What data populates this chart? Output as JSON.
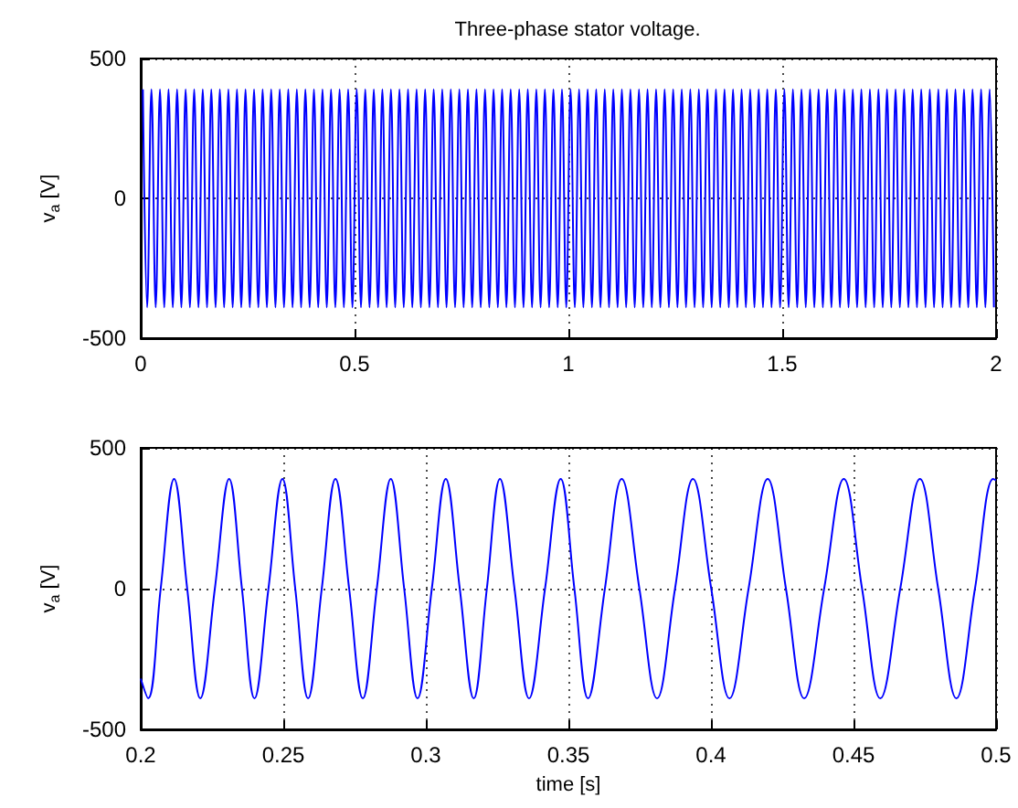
{
  "chart_data": [
    {
      "type": "line",
      "title": "Three-phase stator voltage.",
      "ylabel": "v$_{a}$ [V]",
      "color": "#0000ff",
      "line_style": "solid",
      "grid": true,
      "xlim": [
        0,
        2
      ],
      "xticks": [
        0,
        0.5,
        1,
        1.5,
        2
      ],
      "ylim": [
        -500,
        500
      ],
      "yticks": [
        -500,
        0,
        500
      ],
      "x": [
        0.005,
        0.015,
        0.025,
        0.035,
        0.045,
        0.055,
        0.065,
        0.075,
        0.085,
        0.095,
        0.105,
        0.115,
        0.125,
        0.135,
        0.145,
        0.155,
        0.165,
        0.175,
        0.185,
        0.195,
        0.205,
        0.215,
        0.225,
        0.235,
        0.245,
        0.255,
        0.265,
        0.275,
        0.285,
        0.295,
        0.305,
        0.315,
        0.325,
        0.335,
        0.345,
        0.355,
        0.365,
        0.375,
        0.385,
        0.395,
        0.405,
        0.415,
        0.425,
        0.435,
        0.445,
        0.455,
        0.465,
        0.475,
        0.485,
        0.495,
        0.505,
        0.515,
        0.525,
        0.535,
        0.545,
        0.555,
        0.565,
        0.575,
        0.585,
        0.595,
        0.605,
        0.615,
        0.625,
        0.635,
        0.645,
        0.655,
        0.665,
        0.675,
        0.685,
        0.695,
        0.705,
        0.715,
        0.725,
        0.735,
        0.745,
        0.755,
        0.765,
        0.775,
        0.785,
        0.795,
        0.805,
        0.815,
        0.825,
        0.835,
        0.845,
        0.855,
        0.865,
        0.875,
        0.885,
        0.895,
        0.905,
        0.915,
        0.925,
        0.935,
        0.945,
        0.955,
        0.965,
        0.975,
        0.985,
        0.995,
        1.005,
        1.015,
        1.025,
        1.035,
        1.045,
        1.055,
        1.065,
        1.075,
        1.085,
        1.095,
        1.105,
        1.115,
        1.125,
        1.135,
        1.145,
        1.155,
        1.165,
        1.175,
        1.185,
        1.195,
        1.205,
        1.215,
        1.225,
        1.235,
        1.245,
        1.255,
        1.265,
        1.275,
        1.285,
        1.295,
        1.305,
        1.315,
        1.325,
        1.335,
        1.345,
        1.355,
        1.365,
        1.375,
        1.385,
        1.395,
        1.405,
        1.415,
        1.425,
        1.435,
        1.445,
        1.455,
        1.465,
        1.475,
        1.485,
        1.495,
        1.505,
        1.515,
        1.525,
        1.535,
        1.545,
        1.555,
        1.565,
        1.575,
        1.585,
        1.595,
        1.605,
        1.615,
        1.625,
        1.635,
        1.645,
        1.655,
        1.665,
        1.675,
        1.685,
        1.695,
        1.705,
        1.715,
        1.725,
        1.735,
        1.745,
        1.755,
        1.765,
        1.775,
        1.785,
        1.795,
        1.805,
        1.815,
        1.825,
        1.835,
        1.845,
        1.855,
        1.865,
        1.875,
        1.885,
        1.895,
        1.905,
        1.915,
        1.925,
        1.935,
        1.945,
        1.955,
        1.965,
        1.975,
        1.985,
        1.995
      ],
      "values": [
        390,
        -390,
        390,
        -390,
        390,
        -390,
        390,
        -390,
        390,
        -390,
        390,
        -390,
        390,
        -390,
        390,
        -390,
        390,
        -390,
        390,
        -390,
        390,
        -390,
        390,
        -390,
        390,
        -390,
        390,
        -390,
        390,
        -390,
        390,
        -390,
        390,
        -390,
        390,
        -390,
        390,
        -390,
        390,
        -390,
        390,
        -390,
        390,
        -390,
        390,
        -390,
        390,
        -390,
        390,
        -390,
        390,
        -390,
        390,
        -390,
        390,
        -390,
        390,
        -390,
        390,
        -390,
        390,
        -390,
        390,
        -390,
        390,
        -390,
        390,
        -390,
        390,
        -390,
        390,
        -390,
        390,
        -390,
        390,
        -390,
        390,
        -390,
        390,
        -390,
        390,
        -390,
        390,
        -390,
        390,
        -390,
        390,
        -390,
        390,
        -390,
        390,
        -390,
        390,
        -390,
        390,
        -390,
        390,
        -390,
        390,
        -390,
        390,
        -390,
        390,
        -390,
        390,
        -390,
        390,
        -390,
        390,
        -390,
        390,
        -390,
        390,
        -390,
        390,
        -390,
        390,
        -390,
        390,
        -390,
        390,
        -390,
        390,
        -390,
        390,
        -390,
        390,
        -390,
        390,
        -390,
        390,
        -390,
        390,
        -390,
        390,
        -390,
        390,
        -390,
        390,
        -390,
        390,
        -390,
        390,
        -390,
        390,
        -390,
        390,
        -390,
        390,
        -390,
        390,
        -390,
        390,
        -390,
        390,
        -390,
        390,
        -390,
        390,
        -390,
        390,
        -390,
        390,
        -390,
        390,
        -390,
        390,
        -390,
        390,
        -390,
        390,
        -390,
        390,
        -390,
        390,
        -390,
        390,
        -390,
        390,
        -390,
        390,
        -390,
        390,
        -390,
        390,
        -390,
        390,
        -390,
        390,
        -390,
        390,
        -390,
        390,
        -390,
        390,
        -390,
        390,
        -390,
        390,
        -390
      ]
    },
    {
      "type": "line",
      "xlabel": "time [s]",
      "ylabel": "v$_{a}$ [V]",
      "color": "#0000ff",
      "line_style": "solid",
      "grid": true,
      "xlim": [
        0.2,
        0.5
      ],
      "xticks": [
        0.2,
        0.25,
        0.3,
        0.35,
        0.4,
        0.45,
        0.5
      ],
      "ylim": [
        -500,
        500
      ],
      "yticks": [
        -500,
        0,
        500
      ],
      "x": [
        0.2,
        0.2026,
        0.207,
        0.2117,
        0.2163,
        0.2209,
        0.226,
        0.231,
        0.2355,
        0.2399,
        0.2448,
        0.2497,
        0.2542,
        0.2587,
        0.2635,
        0.2683,
        0.2731,
        0.2779,
        0.2828,
        0.2877,
        0.2924,
        0.2971,
        0.3021,
        0.307,
        0.3119,
        0.3168,
        0.3214,
        0.326,
        0.3311,
        0.3362,
        0.3418,
        0.3473,
        0.3521,
        0.3569,
        0.3628,
        0.3687,
        0.3749,
        0.3811,
        0.3874,
        0.3937,
        0.4001,
        0.4065,
        0.4132,
        0.4199,
        0.4263,
        0.4327,
        0.4397,
        0.4466,
        0.453,
        0.4594,
        0.4664,
        0.4733,
        0.4797,
        0.4861,
        0.4926,
        0.499,
        0.5
      ],
      "values": [
        -320,
        -390,
        0,
        390,
        0,
        -390,
        0,
        390,
        0,
        -390,
        0,
        390,
        0,
        -390,
        0,
        390,
        0,
        -390,
        0,
        390,
        0,
        -390,
        0,
        390,
        0,
        -390,
        0,
        390,
        0,
        -390,
        0,
        390,
        0,
        -390,
        0,
        390,
        0,
        -390,
        0,
        390,
        0,
        -390,
        0,
        390,
        0,
        -390,
        0,
        390,
        0,
        -390,
        0,
        390,
        0,
        -390,
        0,
        390,
        385
      ]
    }
  ]
}
